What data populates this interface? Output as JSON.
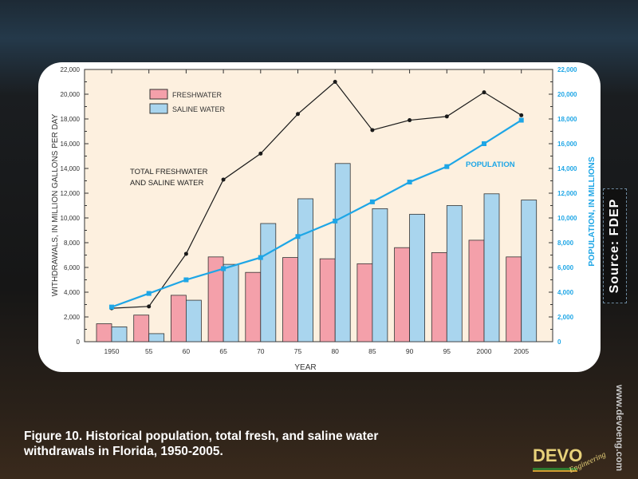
{
  "chart_data": {
    "type": "bar",
    "categories": [
      "1950",
      "55",
      "60",
      "65",
      "70",
      "75",
      "80",
      "85",
      "90",
      "95",
      "2000",
      "2005"
    ],
    "series": [
      {
        "name": "FRESHWATER",
        "kind": "bar",
        "color": "#f4a0aa",
        "values": [
          1450,
          2150,
          3750,
          6850,
          5600,
          6800,
          6700,
          6300,
          7600,
          7200,
          8200,
          6850
        ]
      },
      {
        "name": "SALINE WATER",
        "kind": "bar",
        "color": "#a9d5ee",
        "values": [
          1200,
          650,
          3350,
          6250,
          9550,
          11550,
          14400,
          10750,
          10300,
          11000,
          11950,
          11450
        ]
      },
      {
        "name": "TOTAL FRESHWATER AND SALINE WATER",
        "kind": "line",
        "color": "#1a1a1a",
        "values": [
          2700,
          2850,
          7100,
          13100,
          15200,
          18400,
          21000,
          17100,
          17900,
          18200,
          20150,
          18300
        ]
      },
      {
        "name": "POPULATION",
        "kind": "line",
        "axis": "right",
        "color": "#1ea6e6",
        "values": [
          2800,
          3900,
          5000,
          5900,
          6800,
          8500,
          9750,
          11300,
          12900,
          14150,
          16000,
          17900
        ]
      }
    ],
    "xlabel": "YEAR",
    "ylabel": "WITHDRAWALS, IN MILLION GALLONS PER DAY",
    "y2label": "POPULATION, IN MILLIONS",
    "ylim": [
      0,
      22000
    ],
    "yticks": [
      "0",
      "2,000",
      "4,000",
      "6,000",
      "8,000",
      "10,000",
      "12,000",
      "14,000",
      "16,000",
      "18,000",
      "20,000",
      "22,000"
    ],
    "legend": {
      "placement": "top-left",
      "entries": [
        "FRESHWATER",
        "SALINE WATER"
      ]
    },
    "annotations": {
      "total": [
        "TOTAL FRESHWATER",
        "AND SALINE WATER"
      ],
      "population": "POPULATION"
    },
    "plot_bg": "#fdf0df"
  },
  "caption": [
    "Figure 10. Historical population, total fresh, and saline water",
    "withdrawals in Florida, 1950-2005."
  ],
  "source": "Source: FDEP",
  "url": "www.devoeng.com",
  "logo": {
    "name": "DEVO",
    "sub": "Engineering"
  }
}
